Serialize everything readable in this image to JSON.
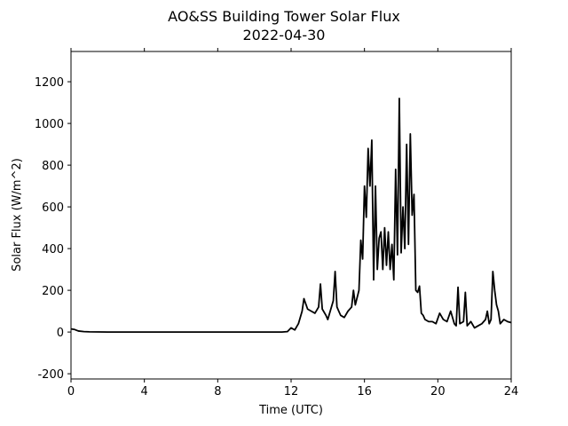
{
  "chart_data": {
    "type": "line",
    "title": "AO&SS Building Tower Solar Flux",
    "subtitle": "2022-04-30",
    "xlabel": "Time (UTC)",
    "ylabel": "Solar Flux (W/m^2)",
    "xlim": [
      0,
      24
    ],
    "ylim": [
      -225,
      1345
    ],
    "xticks": [
      0,
      4,
      8,
      12,
      16,
      20,
      24
    ],
    "yticks": [
      -200,
      0,
      200,
      400,
      600,
      800,
      1000,
      1200
    ],
    "grid": false,
    "series": [
      {
        "name": "Solar Flux",
        "color": "#000000",
        "x": [
          0,
          0.2,
          0.4,
          0.7,
          1,
          2,
          4,
          6,
          8,
          10,
          11.5,
          11.8,
          12,
          12.2,
          12.4,
          12.6,
          12.7,
          12.9,
          13.1,
          13.3,
          13.5,
          13.6,
          13.7,
          13.9,
          14.0,
          14.2,
          14.3,
          14.4,
          14.5,
          14.7,
          14.9,
          15.1,
          15.3,
          15.4,
          15.5,
          15.7,
          15.8,
          15.9,
          16.0,
          16.1,
          16.2,
          16.3,
          16.4,
          16.5,
          16.6,
          16.7,
          16.8,
          16.9,
          17.0,
          17.1,
          17.2,
          17.3,
          17.4,
          17.5,
          17.6,
          17.7,
          17.8,
          17.9,
          18.0,
          18.1,
          18.2,
          18.3,
          18.4,
          18.5,
          18.6,
          18.7,
          18.8,
          18.9,
          19.0,
          19.1,
          19.2,
          19.3,
          19.5,
          19.7,
          19.9,
          20.1,
          20.3,
          20.5,
          20.7,
          20.9,
          21.0,
          21.1,
          21.2,
          21.4,
          21.5,
          21.6,
          21.8,
          22.0,
          22.2,
          22.4,
          22.6,
          22.7,
          22.8,
          22.9,
          23.0,
          23.1,
          23.2,
          23.3,
          23.4,
          23.6,
          23.8,
          24
        ],
        "values": [
          15,
          12,
          5,
          2,
          1,
          0,
          0,
          0,
          0,
          0,
          0,
          2,
          20,
          10,
          40,
          100,
          160,
          110,
          100,
          90,
          120,
          230,
          110,
          80,
          60,
          120,
          150,
          290,
          120,
          80,
          70,
          100,
          120,
          200,
          130,
          200,
          440,
          350,
          700,
          550,
          880,
          700,
          920,
          250,
          700,
          300,
          450,
          480,
          300,
          500,
          320,
          480,
          300,
          420,
          250,
          780,
          370,
          1120,
          380,
          600,
          400,
          900,
          420,
          950,
          560,
          660,
          200,
          190,
          220,
          90,
          80,
          60,
          50,
          50,
          40,
          90,
          60,
          50,
          100,
          40,
          30,
          215,
          40,
          50,
          190,
          30,
          50,
          20,
          30,
          40,
          60,
          100,
          40,
          60,
          290,
          200,
          130,
          100,
          40,
          60,
          50,
          45
        ]
      }
    ]
  }
}
